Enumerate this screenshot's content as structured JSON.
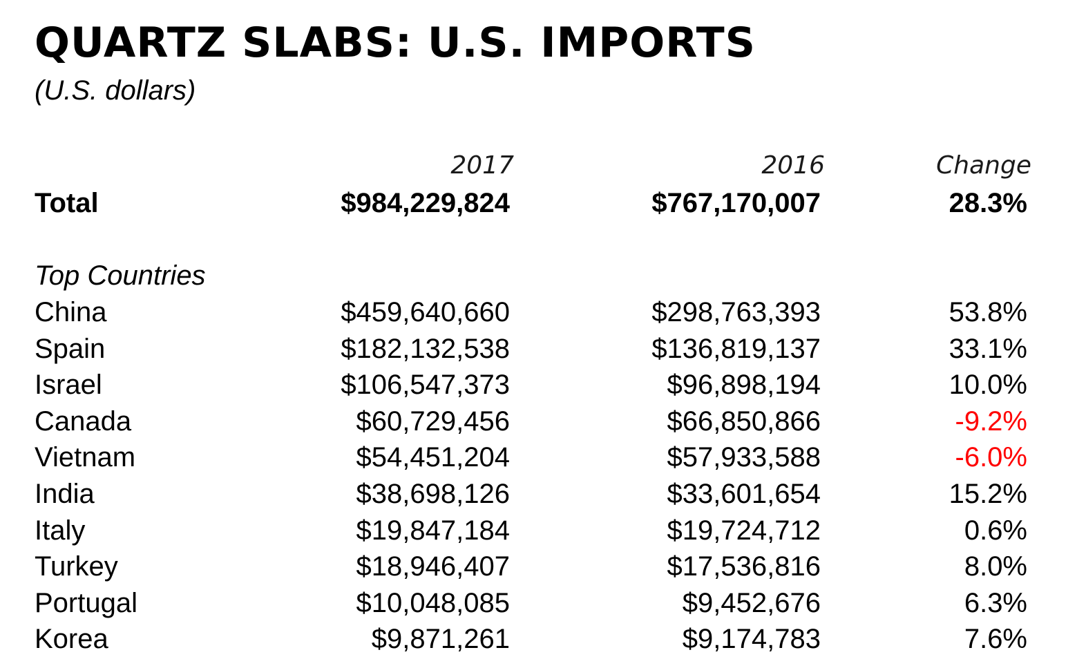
{
  "title": "QUARTZ SLABS: U.S. IMPORTS",
  "subtitle": "(U.S. dollars)",
  "columns": {
    "y2017": "2017",
    "y2016": "2016",
    "change": "Change"
  },
  "total": {
    "label": "Total",
    "y2017": "$984,229,824",
    "y2016": "$767,170,007",
    "change": "28.3%"
  },
  "section_label": "Top Countries",
  "countries": [
    {
      "name": "China",
      "y2017": "$459,640,660",
      "y2016": "$298,763,393",
      "change": "53.8%",
      "negative": false
    },
    {
      "name": "Spain",
      "y2017": "$182,132,538",
      "y2016": "$136,819,137",
      "change": "33.1%",
      "negative": false
    },
    {
      "name": "Israel",
      "y2017": "$106,547,373",
      "y2016": "$96,898,194",
      "change": "10.0%",
      "negative": false
    },
    {
      "name": "Canada",
      "y2017": "$60,729,456",
      "y2016": "$66,850,866",
      "change": "-9.2%",
      "negative": true
    },
    {
      "name": "Vietnam",
      "y2017": "$54,451,204",
      "y2016": "$57,933,588",
      "change": "-6.0%",
      "negative": true
    },
    {
      "name": "India",
      "y2017": "$38,698,126",
      "y2016": "$33,601,654",
      "change": "15.2%",
      "negative": false
    },
    {
      "name": "Italy",
      "y2017": "$19,847,184",
      "y2016": "$19,724,712",
      "change": "0.6%",
      "negative": false
    },
    {
      "name": "Turkey",
      "y2017": "$18,946,407",
      "y2016": "$17,536,816",
      "change": "8.0%",
      "negative": false
    },
    {
      "name": "Portugal",
      "y2017": "$10,048,085",
      "y2016": "$9,452,676",
      "change": "6.3%",
      "negative": false
    },
    {
      "name": "Korea",
      "y2017": "$9,871,261",
      "y2016": "$9,174,783",
      "change": "7.6%",
      "negative": false
    }
  ],
  "colors": {
    "text": "#000000",
    "negative": "#ff0000",
    "background": "#ffffff"
  }
}
